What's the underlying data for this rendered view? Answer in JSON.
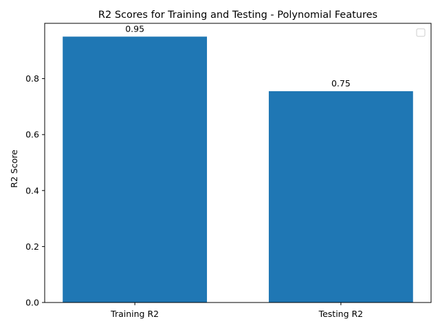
{
  "chart_data": {
    "type": "bar",
    "title": "R2 Scores for Training and Testing - Polynomial Features",
    "xlabel": "",
    "ylabel": "R2 Score",
    "categories": [
      "Training R2",
      "Testing R2"
    ],
    "values": [
      0.95,
      0.755
    ],
    "data_labels": [
      "0.95",
      "0.75"
    ],
    "ylim": [
      0,
      0.9975
    ],
    "yticks": [
      0.0,
      0.2,
      0.4,
      0.6,
      0.8
    ],
    "ytick_labels": [
      "0.0",
      "0.2",
      "0.4",
      "0.6",
      "0.8"
    ],
    "bar_color": "#1f77b4",
    "grid": false,
    "legend": {
      "placement": "top-right",
      "entries": []
    }
  }
}
